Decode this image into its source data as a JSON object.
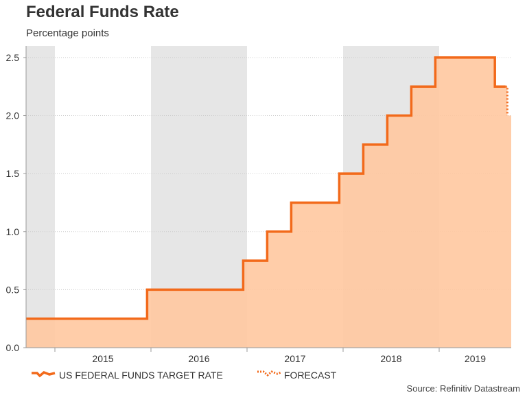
{
  "header": {
    "title": "Federal Funds Rate",
    "subtitle": "Percentage points"
  },
  "source": "Source: Refinitiv Datastream",
  "colors": {
    "line": "#f26a1b",
    "fill": "#ffc8a0",
    "band": "#e6e6e6",
    "grid": "#cccccc",
    "axis": "#999999",
    "text": "#333333"
  },
  "chart_data": {
    "type": "area",
    "title": "Federal Funds Rate",
    "ylabel": "Percentage points",
    "xlabel": "",
    "xlim": [
      2014.7,
      2019.75
    ],
    "ylim": [
      0,
      2.6
    ],
    "yticks": [
      0.0,
      0.5,
      1.0,
      1.5,
      2.0,
      2.5
    ],
    "ytick_labels": [
      "0.0",
      "0.5",
      "1.0",
      "1.5",
      "2.0",
      "2.5"
    ],
    "xticks": [
      2015,
      2016,
      2017,
      2018,
      2019
    ],
    "xtick_labels": [
      "2015",
      "2016",
      "2017",
      "2018",
      "2019"
    ],
    "shaded_bands": [
      [
        2014.7,
        2015.0
      ],
      [
        2016.0,
        2017.0
      ],
      [
        2018.0,
        2019.0
      ]
    ],
    "series": [
      {
        "name": "US FEDERAL FUNDS TARGET RATE",
        "style": "step-solid",
        "points": [
          [
            2014.7,
            0.25
          ],
          [
            2015.96,
            0.25
          ],
          [
            2015.96,
            0.5
          ],
          [
            2016.96,
            0.5
          ],
          [
            2016.96,
            0.75
          ],
          [
            2017.21,
            0.75
          ],
          [
            2017.21,
            1.0
          ],
          [
            2017.46,
            1.0
          ],
          [
            2017.46,
            1.25
          ],
          [
            2017.96,
            1.25
          ],
          [
            2017.96,
            1.5
          ],
          [
            2018.21,
            1.5
          ],
          [
            2018.21,
            1.75
          ],
          [
            2018.46,
            1.75
          ],
          [
            2018.46,
            2.0
          ],
          [
            2018.71,
            2.0
          ],
          [
            2018.71,
            2.25
          ],
          [
            2018.96,
            2.25
          ],
          [
            2018.96,
            2.5
          ],
          [
            2019.58,
            2.5
          ],
          [
            2019.58,
            2.25
          ],
          [
            2019.69,
            2.25
          ]
        ]
      },
      {
        "name": "FORECAST",
        "style": "step-dotted",
        "points": [
          [
            2019.69,
            2.25
          ],
          [
            2019.71,
            2.25
          ],
          [
            2019.71,
            2.0
          ]
        ]
      }
    ],
    "legend": {
      "position": "bottom-left",
      "entries": [
        "US FEDERAL FUNDS TARGET RATE",
        "FORECAST"
      ]
    }
  }
}
